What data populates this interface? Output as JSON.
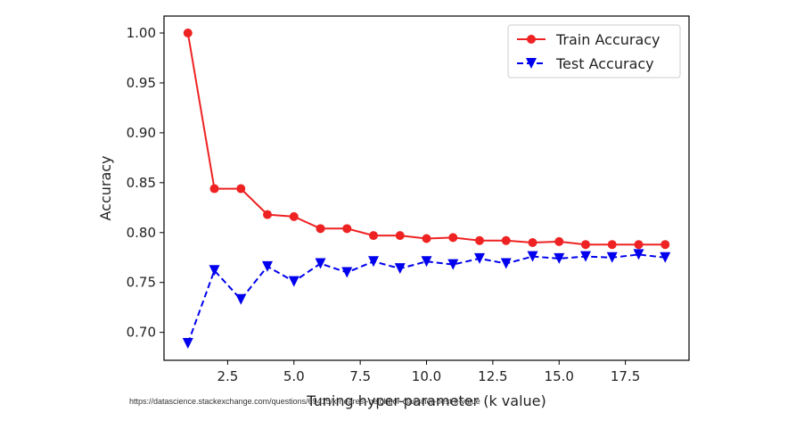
{
  "chart_data": {
    "type": "line",
    "title": "",
    "xlabel": "Tuning hyper-parameter (k value)",
    "ylabel": "Accuracy",
    "xlim": [
      0.1,
      19.9
    ],
    "ylim": [
      0.672,
      1.017
    ],
    "x_ticks": [
      2.5,
      5.0,
      7.5,
      10.0,
      12.5,
      15.0,
      17.5
    ],
    "x_tick_labels": [
      "2.5",
      "5.0",
      "7.5",
      "10.0",
      "12.5",
      "15.0",
      "17.5"
    ],
    "y_ticks": [
      0.7,
      0.75,
      0.8,
      0.85,
      0.9,
      0.95,
      1.0
    ],
    "y_tick_labels": [
      "0.70",
      "0.75",
      "0.80",
      "0.85",
      "0.90",
      "0.95",
      "1.00"
    ],
    "grid": false,
    "legend_position": "top-right",
    "x": [
      1,
      2,
      3,
      4,
      5,
      6,
      7,
      8,
      9,
      10,
      11,
      12,
      13,
      14,
      15,
      16,
      17,
      18,
      19
    ],
    "series": [
      {
        "name": "Train Accuracy",
        "color": "#ee2222",
        "line_style": "solid",
        "marker": "circle",
        "values": [
          1.0,
          0.844,
          0.844,
          0.818,
          0.816,
          0.804,
          0.804,
          0.797,
          0.797,
          0.794,
          0.795,
          0.792,
          0.792,
          0.79,
          0.791,
          0.788,
          0.788,
          0.788,
          0.788
        ]
      },
      {
        "name": "Test Accuracy",
        "color": "#0000ee",
        "line_style": "dashed",
        "marker": "triangle-down",
        "values": [
          0.689,
          0.762,
          0.733,
          0.766,
          0.751,
          0.769,
          0.76,
          0.771,
          0.764,
          0.771,
          0.768,
          0.774,
          0.769,
          0.776,
          0.774,
          0.776,
          0.775,
          0.778,
          0.775
        ]
      }
    ]
  },
  "source_caption": "https://datascience.stackexchange.com/questions/69415/k-nearest-neighbor-classifier-best-k-value"
}
